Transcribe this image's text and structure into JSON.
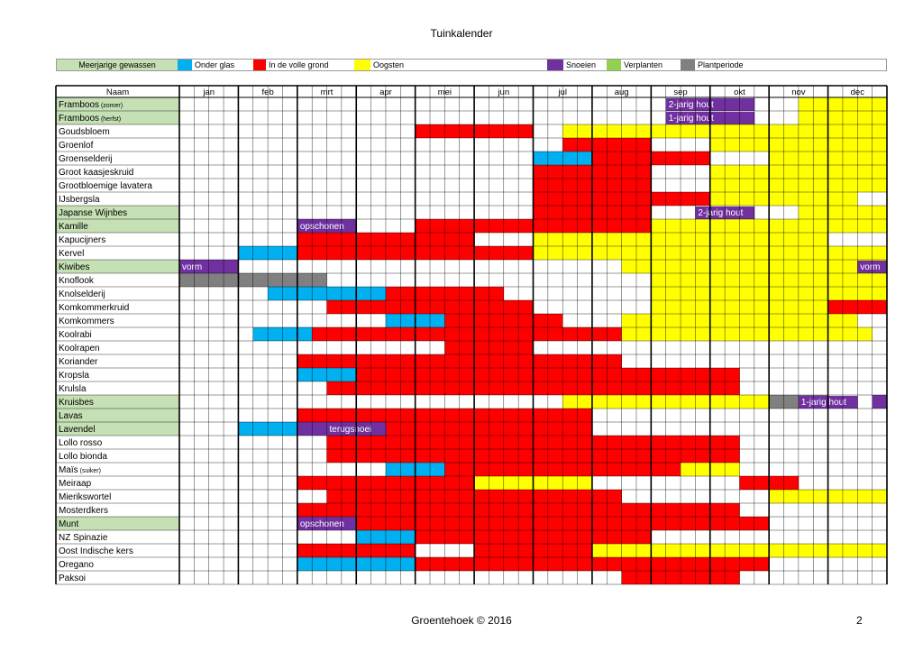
{
  "title": "Tuinkalender",
  "legend": [
    {
      "label": "Meerjarige gewassen",
      "color": "#c5e0b4",
      "swatch": "label"
    },
    {
      "label": "Onder glas",
      "color": "#00b0f0"
    },
    {
      "label": "In de volle grond",
      "color": "#ff0000"
    },
    {
      "label": "Oogsten",
      "color": "#ffff00"
    },
    {
      "label": "Snoeien",
      "color": "#7030a0"
    },
    {
      "label": "Verplanten",
      "color": "#92d050"
    },
    {
      "label": "Plantperiode",
      "color": "#808080"
    }
  ],
  "header_name": "Naam",
  "months": [
    "jan",
    "feb",
    "mrt",
    "apr",
    "mei",
    "jun",
    "jul",
    "aug",
    "sep",
    "okt",
    "nov",
    "dec"
  ],
  "colors": {
    "G": "#00b0f0",
    "R": "#ff0000",
    "Y": "#ffff00",
    "P": "#7030a0",
    "X": "#808080",
    "perennial": "#c5e0b4"
  },
  "rows": [
    {
      "name": "Framboos",
      "suffix": "(zomer)",
      "perennial": true,
      "cells": "..........................................YYYYYYYYYYYYPPPPPP..................",
      "notes": [
        {
          "text": "2-jarig hout",
          "start": 33,
          "span": 6
        }
      ]
    },
    {
      "name": "Framboos",
      "suffix": "(herfst)",
      "perennial": true,
      "cells": "..........................................YYYYYYYYYYYYPPPPPP..................",
      "notes": [
        {
          "text": "1-jarig hout",
          "start": 33,
          "span": 6
        }
      ]
    },
    {
      "name": "Goudsbloem",
      "perennial": false,
      "cells": "................RRRRRRRR..YYYYYYYYYYYYYYYYYYYYYYYYYY............",
      "notes": []
    },
    {
      "name": "Groenlof",
      "perennial": false,
      "cells": "..........................RRRRRR....YYYYYYYYYYYYYYYYYYYY....",
      "notes": []
    },
    {
      "name": "Groenselderij",
      "perennial": false,
      "cells": "........................GGGGRRRRRRRR....YYYYYYYYYY..............",
      "notes": []
    },
    {
      "name": "Groot kaasjeskruid",
      "perennial": false,
      "cells": "........................RRRRRRRR....YYYYYYYYYYYYYYYY........",
      "notes": []
    },
    {
      "name": "Grootbloemige lavatera",
      "perennial": false,
      "cells": "........................RRRRRRRR....YYYYYYYYYYYYYY..........",
      "notes": []
    },
    {
      "name": "IJsbergsla",
      "perennial": false,
      "cells": "........................RRRRRRRRRRRRYYYYYYYYYY..............",
      "notes": []
    },
    {
      "name": "Japanse Wijnbes",
      "perennial": true,
      "cells": "........................RRRRRRRR..........YYYYYYYYYYYYYYYPPPP................",
      "notes": [
        {
          "text": "2-jarig hout",
          "start": 35,
          "span": 4
        }
      ]
    },
    {
      "name": "Kamille",
      "perennial": true,
      "cells": "........PPPP....RRRRRRRRRRRRRRRRYYYYYYYYYYYYYYYY..............",
      "notes": [
        {
          "text": "opschonen",
          "start": 8,
          "span": 4
        }
      ]
    },
    {
      "name": "Kapucijners",
      "perennial": false,
      "cells": "........RRRRRRRRRRRR....YYYYYYYYYYYYYYYYYYYY................",
      "notes": []
    },
    {
      "name": "Kervel",
      "perennial": false,
      "cells": "....GGGGRRRRRRRRRRRRRRRRYYYYYYYYYYYYYYYYYYYYYYYY....",
      "notes": []
    },
    {
      "name": "Kiwibes",
      "perennial": true,
      "cells": "PPPP..........................YYYYYYYYYYYYYYYYYYYYYYYYYYPPPP",
      "notes": [
        {
          "text": "vorm",
          "start": 0,
          "span": 2
        },
        {
          "text": "vorm",
          "start": 46,
          "span": 2
        }
      ]
    },
    {
      "name": "Knoflook",
      "perennial": false,
      "cells": "XXXXXXXXXX......................YYYYYYYYYYYYYYYYXXXXXXXXXXXXXX",
      "notes": []
    },
    {
      "name": "Knolselderij",
      "perennial": false,
      "cells": "......GGGGGGGGRRRRRRRR..........YYYYYYYYYYYYYYYYYY..............",
      "notes": []
    },
    {
      "name": "Komkommerkruid",
      "perennial": false,
      "cells": "..........RRRRRRRRRRRRRR........YYYYYYYYYYYYRRRR..............",
      "notes": []
    },
    {
      "name": "Komkommers",
      "perennial": false,
      "cells": "..............GGGGRRRRRRRR....YYYYYYYYYYYYYYYY..............",
      "notes": []
    },
    {
      "name": "Koolrabi",
      "perennial": false,
      "cells": ".....GGGGRRRRRRRRRRRRRRRRRRRRRYYYYYYYYYYYYYYYYY..........",
      "notes": []
    },
    {
      "name": "Koolrapen",
      "perennial": false,
      "cells": "..................RRRRRR..........................",
      "notes": []
    },
    {
      "name": "Koriander",
      "perennial": false,
      "cells": "........RRRRRRRRRRRRRRRRRRRRRR......................",
      "notes": []
    },
    {
      "name": "Kropsla",
      "perennial": false,
      "cells": "........GGGGRRRRRRRRRRRRRRRRRRRRRRRRRR..................",
      "notes": []
    },
    {
      "name": "Krulsla",
      "perennial": false,
      "cells": "..........RRRRRRRRRRRRRRRRRRRRRRRRRRRR..................",
      "notes": []
    },
    {
      "name": "Kruisbes",
      "perennial": true,
      "cells": "..........................YYYYYYYYYYYYYYXXXX...PPPPPPPP......",
      "notes": [
        {
          "text": "1-jarig hout",
          "start": 42,
          "span": 4
        }
      ]
    },
    {
      "name": "Lavas",
      "perennial": true,
      "cells": "........RRRRRRRRRRRRRRRRRRRR..........................",
      "notes": []
    },
    {
      "name": "Lavendel",
      "perennial": true,
      "cells": "....GGGGPPPPPPRRRRRRRRRRRRRR..........................",
      "notes": [
        {
          "text": "terugsnoei",
          "start": 10,
          "span": 4
        }
      ]
    },
    {
      "name": "Lollo rosso",
      "perennial": false,
      "cells": "..........RRRRRRRRRRRRRRRRRRRRRRRRRRRR..................",
      "notes": []
    },
    {
      "name": "Lollo bionda",
      "perennial": false,
      "cells": "..........RRRRRRRRRRRRRRRRRRRRRRRRRRRR..................",
      "notes": []
    },
    {
      "name": "Maïs",
      "suffix": "(suiker)",
      "perennial": false,
      "cells": "..............GGGGRRRRRRRRRRRRRRRRYYYY..................",
      "notes": []
    },
    {
      "name": "Meiraap",
      "perennial": false,
      "cells": "........RRRRRRRRRRRRYYYYYYYY..........RRRR..............",
      "notes": []
    },
    {
      "name": "Mierikswortel",
      "perennial": false,
      "cells": "..........RRRRRRRRRRRRRRRRRRRR..........YYYYYYYYYY....",
      "notes": []
    },
    {
      "name": "Mosterdkers",
      "perennial": false,
      "cells": "........RRRRRRRRRRRRRRRRRRRRRRRRRRRRRR..................",
      "notes": []
    },
    {
      "name": "Munt",
      "perennial": true,
      "cells": "........PPPPRRRRRRRRRRRRRRRRRRRRRRRRRRRR..................",
      "notes": [
        {
          "text": "opschonen",
          "start": 8,
          "span": 4
        }
      ]
    },
    {
      "name": "NZ Spinazie",
      "perennial": false,
      "cells": "............GGGGRRRRRRRRRRRRRRRR......................",
      "notes": []
    },
    {
      "name": "Oost Indische kers",
      "perennial": false,
      "cells": "........RRRRRRRR....RRRRRRRRYYYYYYYYYYYYYYYYYYYYYYYY........",
      "notes": []
    },
    {
      "name": "Oregano",
      "perennial": false,
      "cells": "........GGGGGGGGRRRRRRRRRRRRRRRRRRRRRRRR..........",
      "notes": []
    },
    {
      "name": "Paksoi",
      "perennial": false,
      "cells": "..............................RRRRRRRR................",
      "notes": []
    }
  ],
  "footer": "Groentehoek © 2016",
  "page_number": "2"
}
